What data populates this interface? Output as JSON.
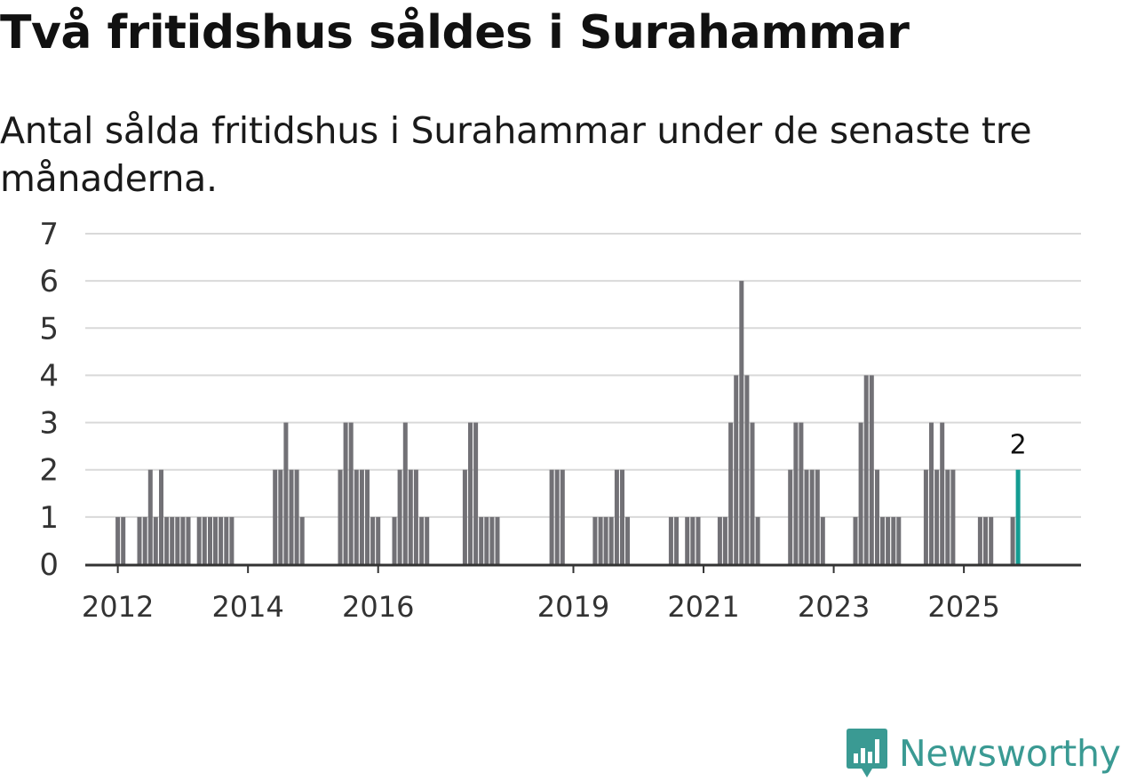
{
  "colors": {
    "bar": "#727176",
    "highlight": "#149c92",
    "grid": "#d9d9d9",
    "axis": "#333333",
    "tick_text": "#333333",
    "brand": "#3a9a93"
  },
  "brand": {
    "name": "Newsworthy",
    "icon": "newsworthy-logo-icon"
  },
  "chart_data": {
    "type": "bar",
    "title": "Två fritidshus såldes i Surahammar",
    "subtitle": "Antal sålda fritidshus i Surahammar under de senaste tre månaderna.",
    "xlabel": "",
    "ylabel": "",
    "ylim": [
      0,
      7
    ],
    "yticks": [
      0,
      1,
      2,
      3,
      4,
      5,
      6,
      7
    ],
    "grid": true,
    "x_unit": "monthly (decimal year)",
    "xlim": [
      2011.5,
      2026.8
    ],
    "xtick_labels": [
      {
        "label": "2012",
        "x": 2012.0
      },
      {
        "label": "2014",
        "x": 2014.0
      },
      {
        "label": "2016",
        "x": 2016.0
      },
      {
        "label": "2019",
        "x": 2019.0
      },
      {
        "label": "2021",
        "x": 2021.0
      },
      {
        "label": "2023",
        "x": 2023.0
      },
      {
        "label": "2025",
        "x": 2025.0
      }
    ],
    "series": [
      {
        "name": "Antal sålda fritidshus",
        "points": [
          {
            "x": 2012.0,
            "value": 1
          },
          {
            "x": 2012.083,
            "value": 1
          },
          {
            "x": 2012.333,
            "value": 1
          },
          {
            "x": 2012.417,
            "value": 1
          },
          {
            "x": 2012.5,
            "value": 2
          },
          {
            "x": 2012.583,
            "value": 1
          },
          {
            "x": 2012.667,
            "value": 2
          },
          {
            "x": 2012.75,
            "value": 1
          },
          {
            "x": 2012.833,
            "value": 1
          },
          {
            "x": 2012.917,
            "value": 1
          },
          {
            "x": 2013.0,
            "value": 1
          },
          {
            "x": 2013.083,
            "value": 1
          },
          {
            "x": 2013.25,
            "value": 1
          },
          {
            "x": 2013.333,
            "value": 1
          },
          {
            "x": 2013.417,
            "value": 1
          },
          {
            "x": 2013.5,
            "value": 1
          },
          {
            "x": 2013.583,
            "value": 1
          },
          {
            "x": 2013.667,
            "value": 1
          },
          {
            "x": 2013.75,
            "value": 1
          },
          {
            "x": 2014.417,
            "value": 2
          },
          {
            "x": 2014.5,
            "value": 2
          },
          {
            "x": 2014.583,
            "value": 3
          },
          {
            "x": 2014.667,
            "value": 2
          },
          {
            "x": 2014.75,
            "value": 2
          },
          {
            "x": 2014.833,
            "value": 1
          },
          {
            "x": 2015.417,
            "value": 2
          },
          {
            "x": 2015.5,
            "value": 3
          },
          {
            "x": 2015.583,
            "value": 3
          },
          {
            "x": 2015.667,
            "value": 2
          },
          {
            "x": 2015.75,
            "value": 2
          },
          {
            "x": 2015.833,
            "value": 2
          },
          {
            "x": 2015.917,
            "value": 1
          },
          {
            "x": 2016.0,
            "value": 1
          },
          {
            "x": 2016.25,
            "value": 1
          },
          {
            "x": 2016.333,
            "value": 2
          },
          {
            "x": 2016.417,
            "value": 3
          },
          {
            "x": 2016.5,
            "value": 2
          },
          {
            "x": 2016.583,
            "value": 2
          },
          {
            "x": 2016.667,
            "value": 1
          },
          {
            "x": 2016.75,
            "value": 1
          },
          {
            "x": 2017.333,
            "value": 2
          },
          {
            "x": 2017.417,
            "value": 3
          },
          {
            "x": 2017.5,
            "value": 3
          },
          {
            "x": 2017.583,
            "value": 1
          },
          {
            "x": 2017.667,
            "value": 1
          },
          {
            "x": 2017.75,
            "value": 1
          },
          {
            "x": 2017.833,
            "value": 1
          },
          {
            "x": 2018.667,
            "value": 2
          },
          {
            "x": 2018.75,
            "value": 2
          },
          {
            "x": 2018.833,
            "value": 2
          },
          {
            "x": 2019.333,
            "value": 1
          },
          {
            "x": 2019.417,
            "value": 1
          },
          {
            "x": 2019.5,
            "value": 1
          },
          {
            "x": 2019.583,
            "value": 1
          },
          {
            "x": 2019.667,
            "value": 2
          },
          {
            "x": 2019.75,
            "value": 2
          },
          {
            "x": 2019.833,
            "value": 1
          },
          {
            "x": 2020.5,
            "value": 1
          },
          {
            "x": 2020.583,
            "value": 1
          },
          {
            "x": 2020.75,
            "value": 1
          },
          {
            "x": 2020.833,
            "value": 1
          },
          {
            "x": 2020.917,
            "value": 1
          },
          {
            "x": 2021.25,
            "value": 1
          },
          {
            "x": 2021.333,
            "value": 1
          },
          {
            "x": 2021.417,
            "value": 3
          },
          {
            "x": 2021.5,
            "value": 4
          },
          {
            "x": 2021.583,
            "value": 6
          },
          {
            "x": 2021.667,
            "value": 4
          },
          {
            "x": 2021.75,
            "value": 3
          },
          {
            "x": 2021.833,
            "value": 1
          },
          {
            "x": 2022.333,
            "value": 2
          },
          {
            "x": 2022.417,
            "value": 3
          },
          {
            "x": 2022.5,
            "value": 3
          },
          {
            "x": 2022.583,
            "value": 2
          },
          {
            "x": 2022.667,
            "value": 2
          },
          {
            "x": 2022.75,
            "value": 2
          },
          {
            "x": 2022.833,
            "value": 1
          },
          {
            "x": 2023.333,
            "value": 1
          },
          {
            "x": 2023.417,
            "value": 3
          },
          {
            "x": 2023.5,
            "value": 4
          },
          {
            "x": 2023.583,
            "value": 4
          },
          {
            "x": 2023.667,
            "value": 2
          },
          {
            "x": 2023.75,
            "value": 1
          },
          {
            "x": 2023.833,
            "value": 1
          },
          {
            "x": 2023.917,
            "value": 1
          },
          {
            "x": 2024.0,
            "value": 1
          },
          {
            "x": 2024.417,
            "value": 2
          },
          {
            "x": 2024.5,
            "value": 3
          },
          {
            "x": 2024.583,
            "value": 2
          },
          {
            "x": 2024.667,
            "value": 3
          },
          {
            "x": 2024.75,
            "value": 2
          },
          {
            "x": 2024.833,
            "value": 2
          },
          {
            "x": 2025.25,
            "value": 1
          },
          {
            "x": 2025.333,
            "value": 1
          },
          {
            "x": 2025.417,
            "value": 1
          },
          {
            "x": 2025.75,
            "value": 1
          },
          {
            "x": 2025.833,
            "value": 2,
            "highlight": true,
            "label": "2"
          }
        ]
      }
    ]
  }
}
